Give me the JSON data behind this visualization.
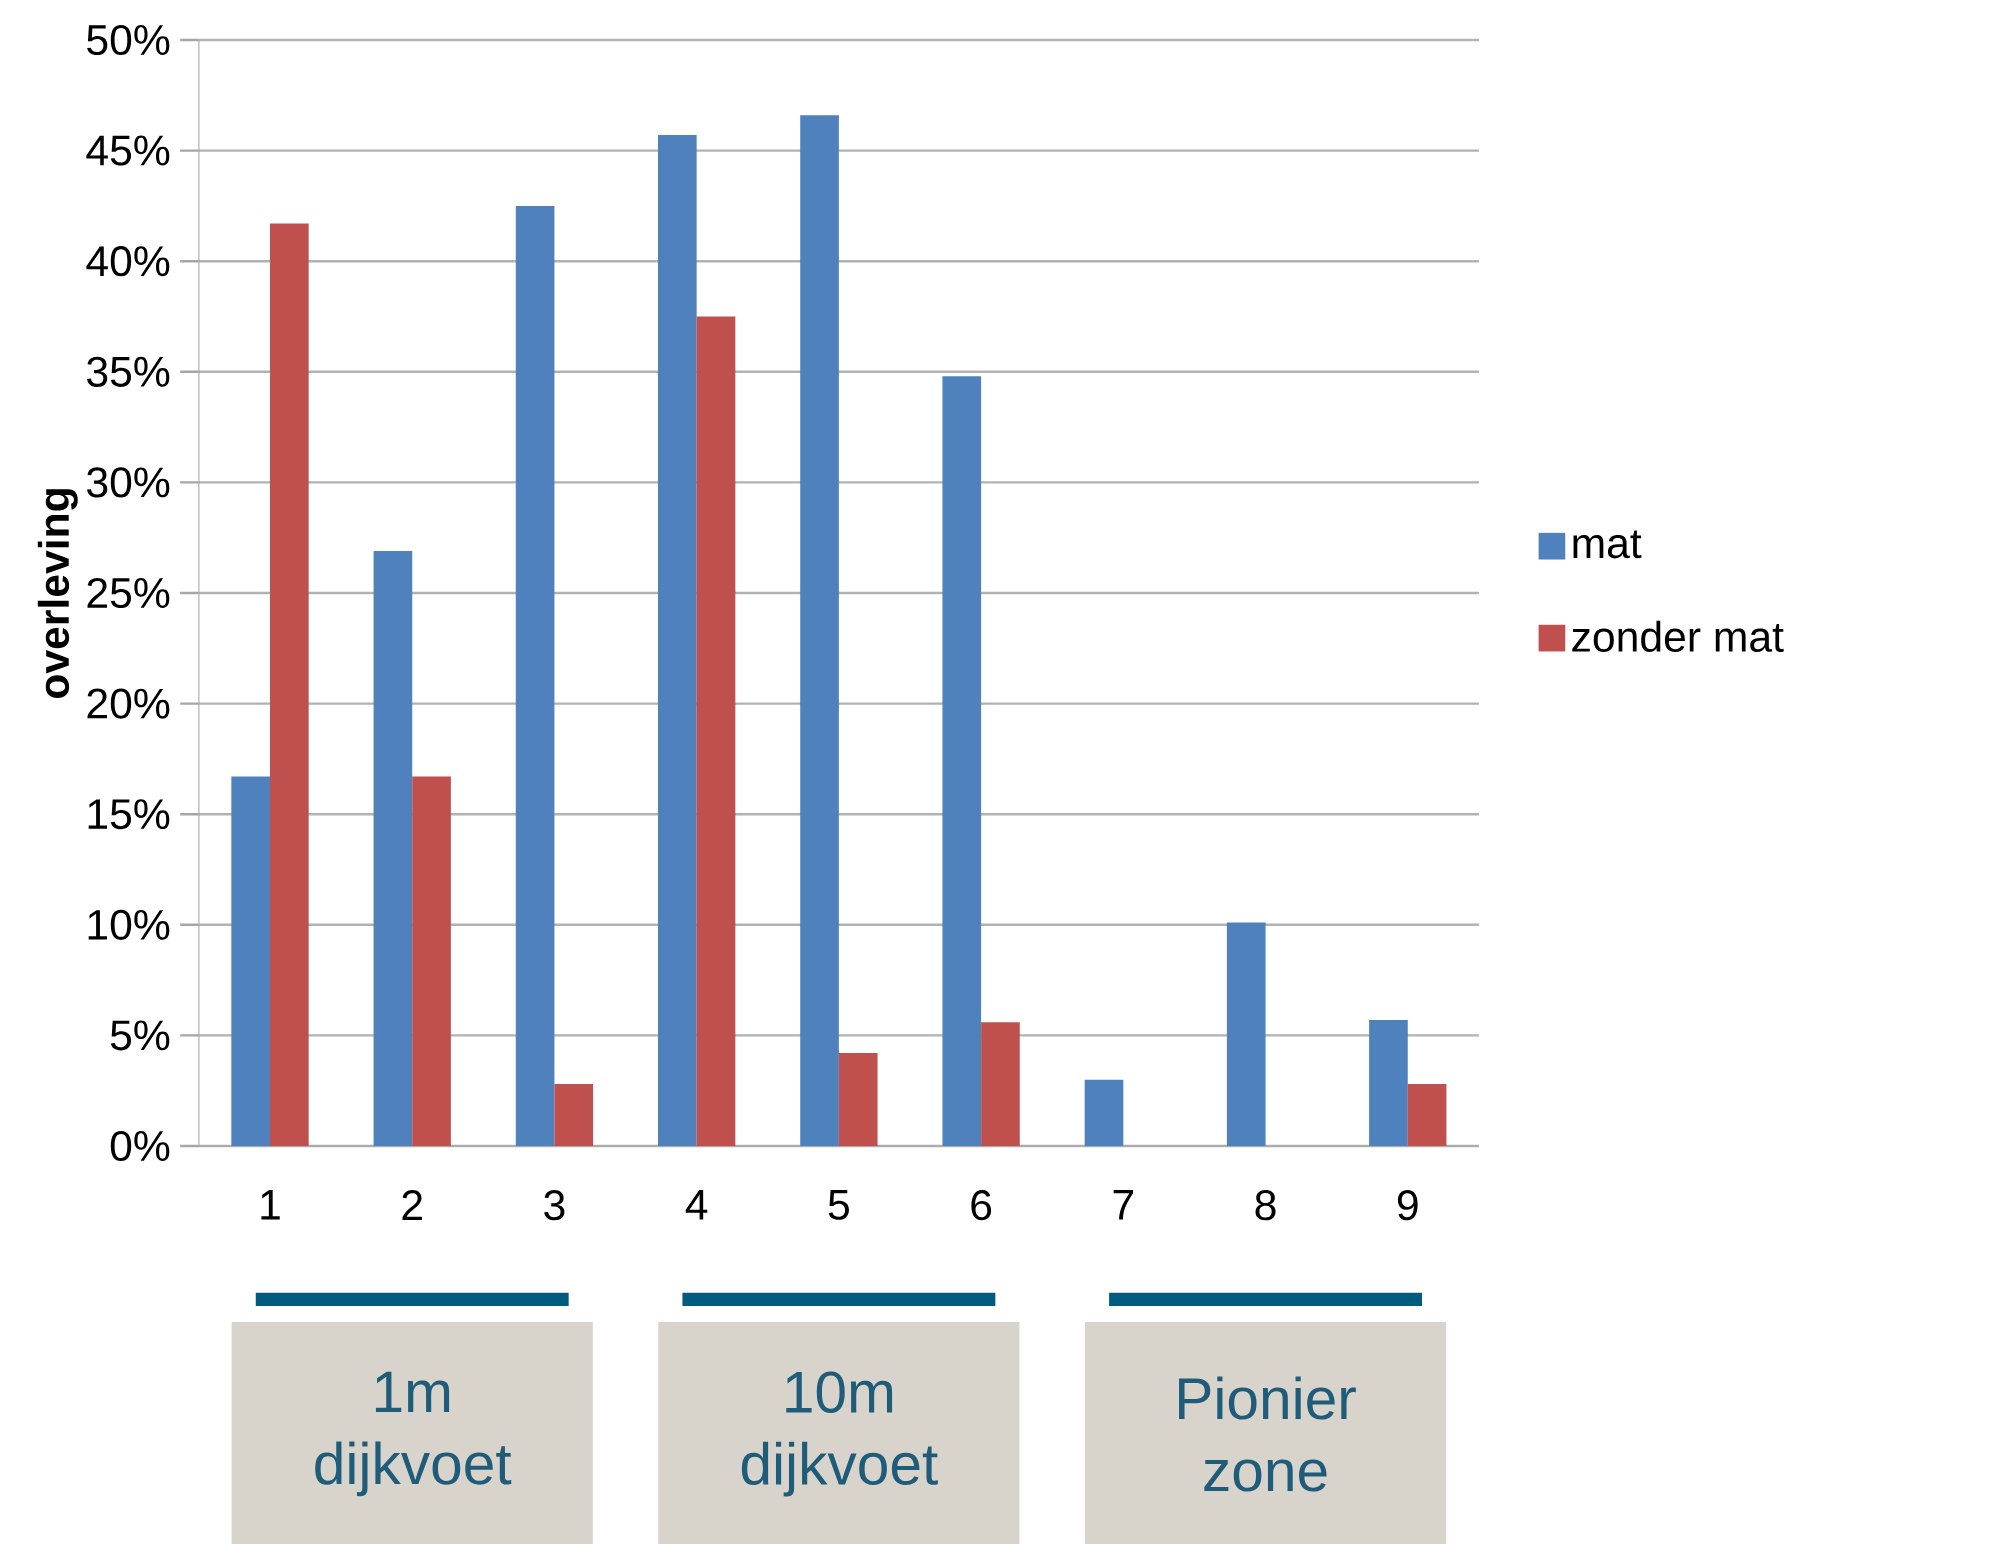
{
  "chart_data": {
    "type": "bar",
    "ylabel": "overleving",
    "categories": [
      "1",
      "2",
      "3",
      "4",
      "5",
      "6",
      "7",
      "8",
      "9"
    ],
    "series": [
      {
        "name": "mat",
        "color": "#4f81bd",
        "values": [
          16.7,
          26.9,
          42.5,
          45.7,
          46.6,
          34.8,
          3.0,
          10.1,
          5.7
        ]
      },
      {
        "name": "zonder mat",
        "color": "#c0504d",
        "values": [
          41.7,
          16.7,
          2.8,
          37.5,
          4.2,
          5.6,
          0,
          0,
          2.8
        ]
      }
    ],
    "ylim": [
      0,
      50
    ],
    "yticks": [
      {
        "value": 0,
        "label": "0%"
      },
      {
        "value": 5,
        "label": "5%"
      },
      {
        "value": 10,
        "label": "10%"
      },
      {
        "value": 15,
        "label": "15%"
      },
      {
        "value": 20,
        "label": "20%"
      },
      {
        "value": 25,
        "label": "25%"
      },
      {
        "value": 30,
        "label": "30%"
      },
      {
        "value": 35,
        "label": "35%"
      },
      {
        "value": 40,
        "label": "40%"
      },
      {
        "value": 45,
        "label": "45%"
      },
      {
        "value": 50,
        "label": "50%"
      }
    ],
    "grid": "y",
    "legend": "right",
    "annotations": [
      "1m dijkvoet",
      "10m dijkvoet",
      "Pionier zone"
    ]
  }
}
